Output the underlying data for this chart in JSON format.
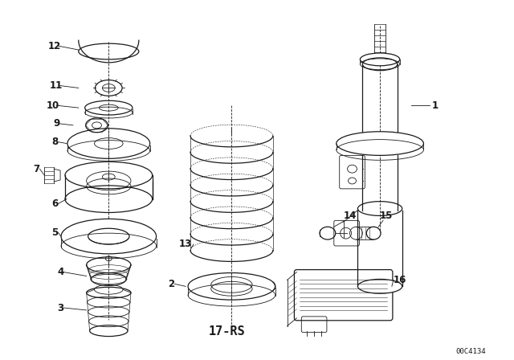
{
  "diagram_code": "17-RS",
  "part_number": "00C4134",
  "bg_color": "#ffffff",
  "line_color": "#1a1a1a",
  "lw_thin": 0.6,
  "lw_med": 0.9,
  "lw_thick": 1.3
}
